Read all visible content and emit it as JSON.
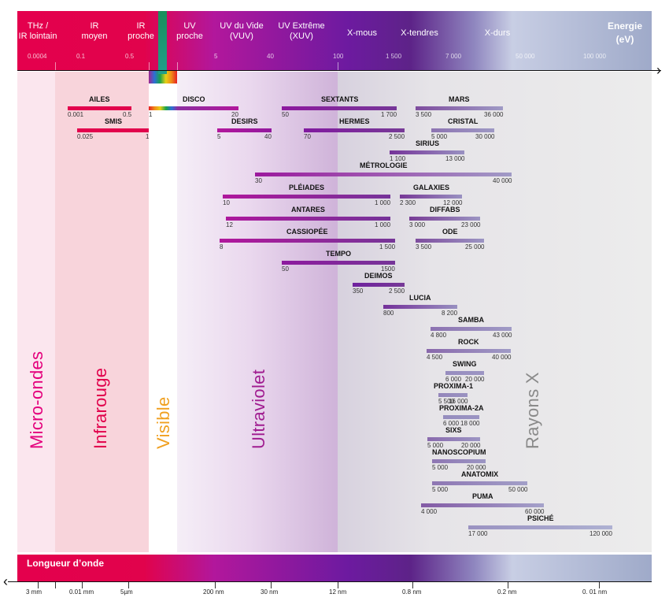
{
  "top_band": {
    "labels": [
      {
        "id": "thz",
        "text": "THz /\nIR lointain"
      },
      {
        "id": "ir-moyen",
        "text": "IR\nmoyen"
      },
      {
        "id": "ir-proche",
        "text": "IR\nproche"
      },
      {
        "id": "uv-proche",
        "text": "UV\nproche"
      },
      {
        "id": "uv-vide",
        "text": "UV du Vide\n(VUV)"
      },
      {
        "id": "uv-extreme",
        "text": "UV Extrême\n(XUV)"
      },
      {
        "id": "x-mous",
        "text": "X-mous"
      },
      {
        "id": "x-tendres",
        "text": "X-tendres"
      },
      {
        "id": "x-durs",
        "text": "X-durs"
      }
    ],
    "energy_title": "Energie\n(eV)",
    "ticks": [
      "0.0004",
      "0.1",
      "0.5",
      "5",
      "40",
      "100",
      "1 500",
      "7 000",
      "50 000",
      "100 000"
    ]
  },
  "bottom_band": {
    "title": "Longueur d’onde",
    "ticks": [
      "3 mm",
      "0.01 mm",
      "5µm",
      "200 nm",
      "30 nm",
      "12 nm",
      "0.8 nm",
      "0.2 nm",
      "0. 01 nm"
    ]
  },
  "regions": {
    "micro": "Micro-ondes",
    "infra": "Infrarouge",
    "visible": "Visible",
    "uv": "Ultraviolet",
    "x": "Rayons X"
  },
  "colors": {
    "micro": "#e4007c",
    "infra": "#e1004b",
    "visible": "#f0a020",
    "uv": "#a01c90",
    "x": "#8a8a8a"
  },
  "beamlines": [
    {
      "name": "AILES",
      "low": "0.001",
      "high": "0.5"
    },
    {
      "name": "DISCO",
      "low": "1",
      "high": "20"
    },
    {
      "name": "SEXTANTS",
      "low": "50",
      "high": "1 700"
    },
    {
      "name": "MARS",
      "low": "3 500",
      "high": "36 000"
    },
    {
      "name": "SMIS",
      "low": "0.025",
      "high": "1"
    },
    {
      "name": "DESIRS",
      "low": "5",
      "high": "40"
    },
    {
      "name": "HERMES",
      "low": "70",
      "high": "2 500"
    },
    {
      "name": "CRISTAL",
      "low": "5 000",
      "high": "30 000"
    },
    {
      "name": "SIRIUS",
      "low": "1 100",
      "high": "13 000"
    },
    {
      "name": "MÉTROLOGIE",
      "low": "30",
      "high": "40 000"
    },
    {
      "name": "PLÉIADES",
      "low": "10",
      "high": "1 000"
    },
    {
      "name": "GALAXIES",
      "low": "2 300",
      "high": "12 000"
    },
    {
      "name": "ANTARES",
      "low": "12",
      "high": "1 000"
    },
    {
      "name": "DIFFABS",
      "low": "3 000",
      "high": "23 000"
    },
    {
      "name": "CASSIOPÉE",
      "low": "8",
      "high": "1 500"
    },
    {
      "name": "ODE",
      "low": "3 500",
      "high": "25 000"
    },
    {
      "name": "TEMPO",
      "low": "50",
      "high": "1500"
    },
    {
      "name": "DEIMOS",
      "low": "350",
      "high": "2 500"
    },
    {
      "name": "LUCIA",
      "low": "800",
      "high": "8 200"
    },
    {
      "name": "SAMBA",
      "low": "4 800",
      "high": "43 000"
    },
    {
      "name": "ROCK",
      "low": "4 500",
      "high": "40 000"
    },
    {
      "name": "SWING",
      "low": "6 000",
      "high": "20 000"
    },
    {
      "name": "PROXIMA-1",
      "low": "5 500",
      "high": "16 000"
    },
    {
      "name": "PROXIMA-2A",
      "low": "6 000",
      "high": "18 000"
    },
    {
      "name": "SIXS",
      "low": "5 000",
      "high": "20 000"
    },
    {
      "name": "NANOSCOPIUM",
      "low": "5 000",
      "high": "20 000"
    },
    {
      "name": "ANATOMIX",
      "low": "5 000",
      "high": "50 000"
    },
    {
      "name": "PUMA",
      "low": "4 000",
      "high": "60 000"
    },
    {
      "name": "PSICHÉ",
      "low": "17 000",
      "high": "120 000"
    }
  ]
}
